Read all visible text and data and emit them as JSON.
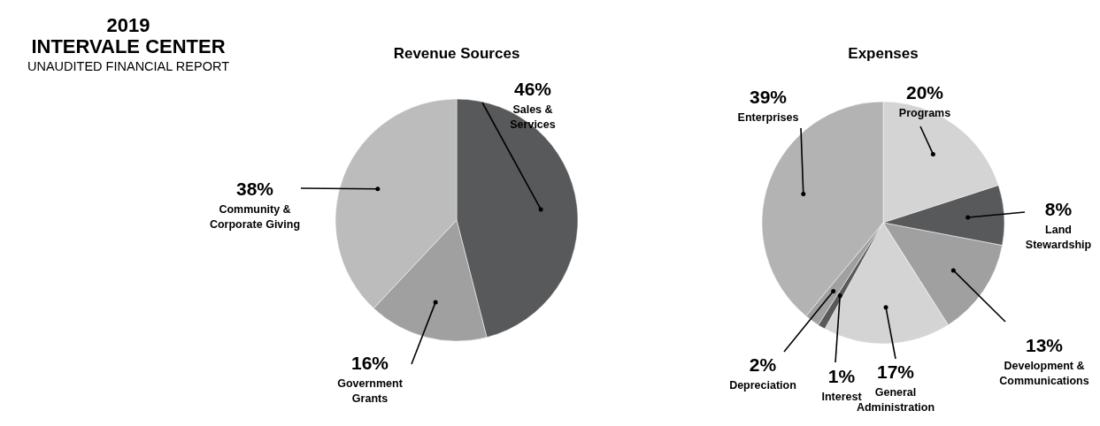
{
  "chart_data": [
    {
      "type": "pie",
      "title": "Revenue Sources",
      "annotations": [
        "2019",
        "INTERVALE CENTER",
        "UNAUDITED FINANCIAL REPORT"
      ],
      "categories": [
        "Sales &\nServices",
        "Government\nGrants",
        "Community &\nCorporate Giving"
      ],
      "values": [
        46,
        16,
        38
      ],
      "colors": [
        "#58595b",
        "#a0a0a0",
        "#bcbcbc"
      ],
      "value_labels": [
        "46%",
        "16%",
        "38%"
      ]
    },
    {
      "type": "pie",
      "title": "Expenses",
      "categories": [
        "Programs",
        "Land\nStewardship",
        "Development &\nCommunications",
        "General\nAdministration",
        "Interest",
        "Depreciation",
        "Enterprises"
      ],
      "values": [
        20,
        8,
        13,
        17,
        1,
        2,
        39
      ],
      "colors": [
        "#d4d4d4",
        "#58595b",
        "#a0a0a0",
        "#d4d4d4",
        "#58595b",
        "#a0a0a0",
        "#b3b3b3"
      ],
      "value_labels": [
        "20%",
        "8%",
        "13%",
        "17%",
        "1%",
        "2%",
        "39%"
      ]
    }
  ]
}
